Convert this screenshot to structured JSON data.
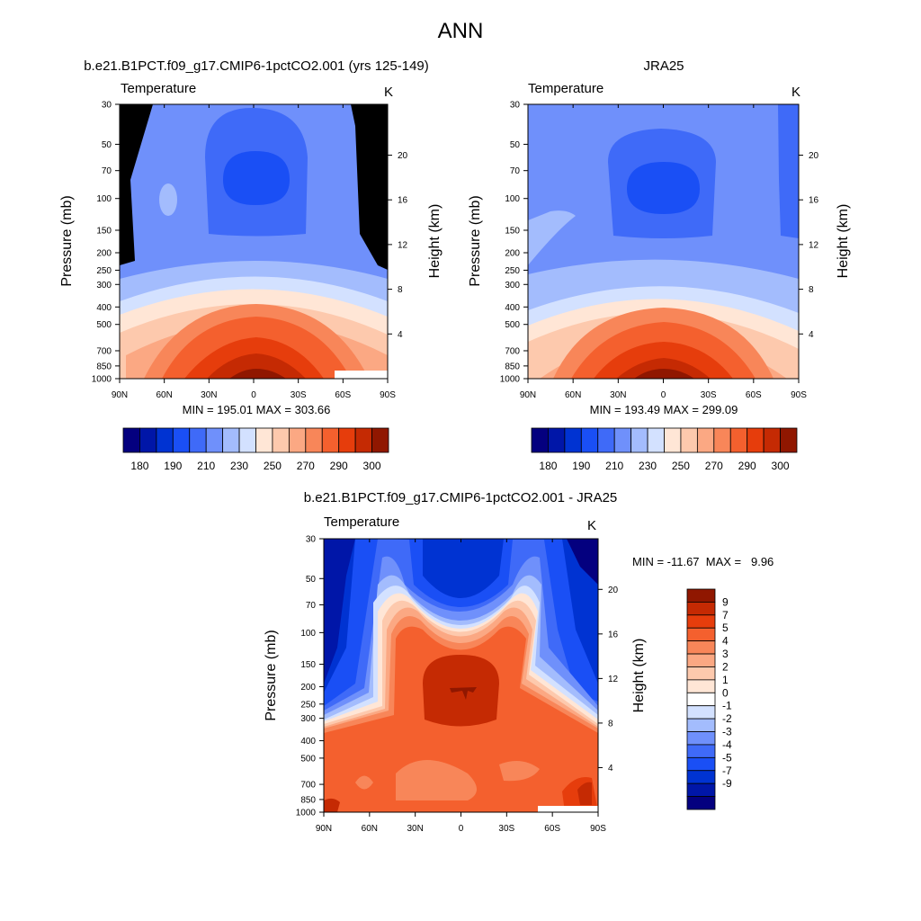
{
  "page_title": "ANN",
  "colors": {
    "abs_scale": [
      "#04007f",
      "#0016a8",
      "#0033d2",
      "#1a4ff5",
      "#3f6af8",
      "#6f90fb",
      "#a3bcfd",
      "#d3e1ff",
      "#ffe6d6",
      "#fdc9ad",
      "#fba883",
      "#f88659",
      "#f4602e",
      "#e63d0c",
      "#c52a03",
      "#901700"
    ],
    "diff_scale": [
      "#04007f",
      "#0016a8",
      "#0033d2",
      "#1a4ff5",
      "#3f6af8",
      "#6f90fb",
      "#a3bcfd",
      "#d3e1ff",
      "#ffffff",
      "#ffe6d6",
      "#fdc9ad",
      "#fba883",
      "#f88659",
      "#f4602e",
      "#e63d0c",
      "#c52a03",
      "#901700"
    ]
  },
  "chart_data": [
    {
      "type": "heatmap",
      "title": "b.e21.B1PCT.f09_g17.CMIP6-1pctCO2.001 (yrs 125-149)",
      "left_string": "Temperature",
      "right_string": "K",
      "ylabel": "Pressure (mb)",
      "y2label": "Height (km)",
      "x_ticks": [
        "90N",
        "60N",
        "30N",
        "0",
        "30S",
        "60S",
        "90S"
      ],
      "y_ticks": [
        "30",
        "50",
        "70",
        "100",
        "150",
        "200",
        "250",
        "300",
        "400",
        "500",
        "700",
        "850",
        "1000"
      ],
      "y2_ticks": [
        "20",
        "16",
        "12",
        "8",
        "4"
      ],
      "stats": "MIN = 195.01  MAX = 303.66",
      "colorbar_levels": [
        180,
        185,
        190,
        200,
        210,
        220,
        230,
        240,
        250,
        260,
        270,
        280,
        290,
        295,
        300
      ],
      "colorbar_labels": [
        "180",
        "190",
        "210",
        "230",
        "250",
        "270",
        "290",
        "300"
      ],
      "min": 195.01,
      "max": 303.66
    },
    {
      "type": "heatmap",
      "title": "JRA25",
      "left_string": "Temperature",
      "right_string": "K",
      "ylabel": "Pressure (mb)",
      "y2label": "Height (km)",
      "x_ticks": [
        "90N",
        "60N",
        "30N",
        "0",
        "30S",
        "60S",
        "90S"
      ],
      "y_ticks": [
        "30",
        "50",
        "70",
        "100",
        "150",
        "200",
        "250",
        "300",
        "400",
        "500",
        "700",
        "850",
        "1000"
      ],
      "y2_ticks": [
        "20",
        "16",
        "12",
        "8",
        "4"
      ],
      "stats": "MIN = 193.49  MAX = 299.09",
      "colorbar_levels": [
        180,
        185,
        190,
        200,
        210,
        220,
        230,
        240,
        250,
        260,
        270,
        280,
        290,
        295,
        300
      ],
      "colorbar_labels": [
        "180",
        "190",
        "210",
        "230",
        "250",
        "270",
        "290",
        "300"
      ],
      "min": 193.49,
      "max": 299.09
    },
    {
      "type": "heatmap",
      "title": "b.e21.B1PCT.f09_g17.CMIP6-1pctCO2.001 - JRA25",
      "left_string": "Temperature",
      "right_string": "K",
      "ylabel": "Pressure (mb)",
      "y2label": "Height (km)",
      "x_ticks": [
        "90N",
        "60N",
        "30N",
        "0",
        "30S",
        "60S",
        "90S"
      ],
      "y_ticks": [
        "30",
        "50",
        "70",
        "100",
        "150",
        "200",
        "250",
        "300",
        "400",
        "500",
        "700",
        "850",
        "1000"
      ],
      "y2_ticks": [
        "20",
        "16",
        "12",
        "8",
        "4"
      ],
      "stats": "MIN = -11.67  MAX =   9.96",
      "colorbar_levels": [
        -9,
        -7,
        -5,
        -4,
        -3,
        -2,
        -1,
        0,
        1,
        2,
        3,
        4,
        5,
        7,
        9
      ],
      "colorbar_labels": [
        "9",
        "7",
        "5",
        "4",
        "3",
        "2",
        "1",
        "0",
        "-1",
        "-2",
        "-3",
        "-4",
        "-5",
        "-7",
        "-9"
      ],
      "min": -11.67,
      "max": 9.96
    }
  ]
}
